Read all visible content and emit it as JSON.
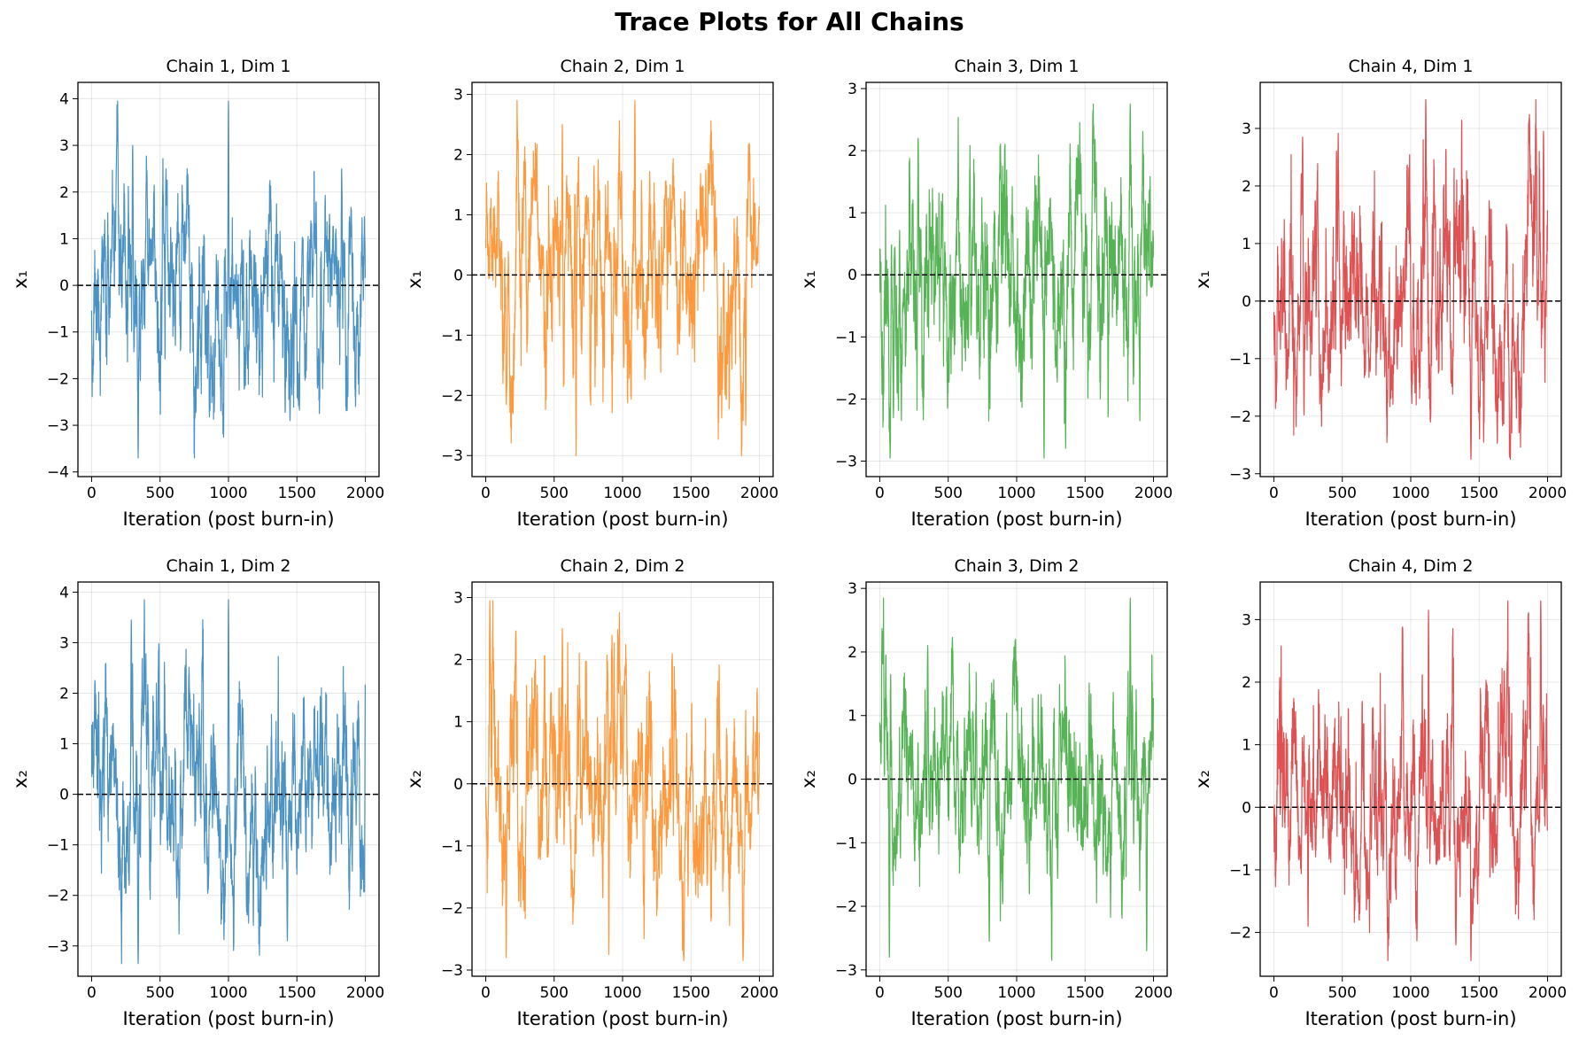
{
  "title": "Trace Plots for All Chains",
  "chart_data": [
    {
      "type": "line",
      "title": "Chain 1, Dim 1",
      "xlabel": "Iteration (post burn-in)",
      "ylabel": "x₁",
      "xlim": [
        -100,
        2100
      ],
      "ylim": [
        -4.1,
        4.35
      ],
      "xticks": [
        0,
        500,
        1000,
        1500,
        2000
      ],
      "yticks": [
        -4,
        -3,
        -2,
        -1,
        0,
        1,
        2,
        3,
        4
      ],
      "grid": true,
      "reference_line": 0,
      "color": "#1f77b4",
      "n": 2000,
      "seed": 11,
      "y_min": -3.7,
      "y_max": 3.95,
      "features": [
        [
          300,
          3.0
        ],
        [
          340,
          -3.7
        ],
        [
          1000,
          3.95
        ],
        [
          1450,
          -2.9
        ],
        [
          1650,
          -2.2
        ]
      ]
    },
    {
      "type": "line",
      "title": "Chain 2, Dim 1",
      "xlabel": "Iteration (post burn-in)",
      "ylabel": "x₁",
      "xlim": [
        -100,
        2100
      ],
      "ylim": [
        -3.35,
        3.2
      ],
      "xticks": [
        0,
        500,
        1000,
        1500,
        2000
      ],
      "yticks": [
        -3,
        -2,
        -1,
        0,
        1,
        2,
        3
      ],
      "grid": true,
      "reference_line": 0,
      "color": "#ff7f0e",
      "n": 2000,
      "seed": 23,
      "y_min": -3.0,
      "y_max": 2.9,
      "features": [
        [
          560,
          2.5
        ],
        [
          660,
          -3.0
        ],
        [
          1090,
          2.9
        ],
        [
          1900,
          -2.5
        ],
        [
          150,
          -2.15
        ]
      ]
    },
    {
      "type": "line",
      "title": "Chain 3, Dim 1",
      "xlabel": "Iteration (post burn-in)",
      "ylabel": "x₁",
      "xlim": [
        -100,
        2100
      ],
      "ylim": [
        -3.25,
        3.1
      ],
      "xticks": [
        0,
        500,
        1000,
        1500,
        2000
      ],
      "yticks": [
        -3,
        -2,
        -1,
        0,
        1,
        2,
        3
      ],
      "grid": true,
      "reference_line": 0,
      "color": "#2ca02c",
      "n": 2000,
      "seed": 37,
      "y_min": -2.95,
      "y_max": 2.75,
      "features": [
        [
          280,
          2.2
        ],
        [
          1200,
          -2.95
        ],
        [
          1830,
          2.75
        ],
        [
          1900,
          -2.35
        ],
        [
          100,
          -2.3
        ]
      ]
    },
    {
      "type": "line",
      "title": "Chain 4, Dim 1",
      "xlabel": "Iteration (post burn-in)",
      "ylabel": "x₁",
      "xlim": [
        -100,
        2100
      ],
      "ylim": [
        -3.05,
        3.8
      ],
      "xticks": [
        0,
        500,
        1000,
        1500,
        2000
      ],
      "yticks": [
        -3,
        -2,
        -1,
        0,
        1,
        2,
        3
      ],
      "grid": true,
      "reference_line": 0,
      "color": "#d62728",
      "n": 2000,
      "seed": 41,
      "y_min": -2.75,
      "y_max": 3.5,
      "features": [
        [
          1110,
          3.5
        ],
        [
          1440,
          -2.75
        ],
        [
          1970,
          2.95
        ],
        [
          220,
          -2.0
        ],
        [
          210,
          2.85
        ]
      ]
    },
    {
      "type": "line",
      "title": "Chain 1, Dim 2",
      "xlabel": "Iteration (post burn-in)",
      "ylabel": "x₂",
      "xlim": [
        -100,
        2100
      ],
      "ylim": [
        -3.6,
        4.2
      ],
      "xticks": [
        0,
        500,
        1000,
        1500,
        2000
      ],
      "yticks": [
        -3,
        -2,
        -1,
        0,
        1,
        2,
        3,
        4
      ],
      "grid": true,
      "reference_line": 0,
      "color": "#1f77b4",
      "n": 2000,
      "seed": 53,
      "y_min": -3.35,
      "y_max": 3.85,
      "features": [
        [
          290,
          3.45
        ],
        [
          340,
          -3.35
        ],
        [
          1000,
          3.85
        ],
        [
          1430,
          -2.9
        ],
        [
          2000,
          2.4
        ]
      ]
    },
    {
      "type": "line",
      "title": "Chain 2, Dim 2",
      "xlabel": "Iteration (post burn-in)",
      "ylabel": "x₂",
      "xlim": [
        -100,
        2100
      ],
      "ylim": [
        -3.1,
        3.25
      ],
      "xticks": [
        0,
        500,
        1000,
        1500,
        2000
      ],
      "yticks": [
        -3,
        -2,
        -1,
        0,
        1,
        2,
        3
      ],
      "grid": true,
      "reference_line": 0,
      "color": "#ff7f0e",
      "n": 2000,
      "seed": 67,
      "y_min": -2.85,
      "y_max": 2.95,
      "features": [
        [
          30,
          2.95
        ],
        [
          150,
          -2.8
        ],
        [
          900,
          -2.75
        ],
        [
          1880,
          -2.85
        ],
        [
          560,
          2.5
        ]
      ]
    },
    {
      "type": "line",
      "title": "Chain 3, Dim 2",
      "xlabel": "Iteration (post burn-in)",
      "ylabel": "x₂",
      "xlim": [
        -100,
        2100
      ],
      "ylim": [
        -3.1,
        3.1
      ],
      "xticks": [
        0,
        500,
        1000,
        1500,
        2000
      ],
      "yticks": [
        -3,
        -2,
        -1,
        0,
        1,
        2,
        3
      ],
      "grid": true,
      "reference_line": 0,
      "color": "#2ca02c",
      "n": 2000,
      "seed": 79,
      "y_min": -2.85,
      "y_max": 2.85,
      "features": [
        [
          70,
          -2.8
        ],
        [
          350,
          2.1
        ],
        [
          1830,
          2.85
        ],
        [
          1950,
          -2.7
        ],
        [
          800,
          -2.55
        ]
      ]
    },
    {
      "type": "line",
      "title": "Chain 4, Dim 2",
      "xlabel": "Iteration (post burn-in)",
      "ylabel": "x₂",
      "xlim": [
        -100,
        2100
      ],
      "ylim": [
        -2.7,
        3.6
      ],
      "xticks": [
        0,
        500,
        1000,
        1500,
        2000
      ],
      "yticks": [
        -2,
        -1,
        0,
        1,
        2,
        3
      ],
      "grid": true,
      "reference_line": 0,
      "color": "#d62728",
      "n": 2000,
      "seed": 83,
      "y_min": -2.45,
      "y_max": 3.3,
      "features": [
        [
          1130,
          3.15
        ],
        [
          1440,
          -2.45
        ],
        [
          1950,
          3.3
        ],
        [
          1330,
          -2.2
        ],
        [
          250,
          -1.9
        ]
      ]
    }
  ]
}
